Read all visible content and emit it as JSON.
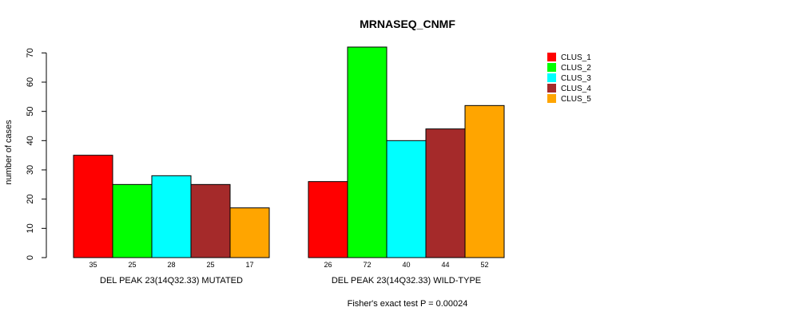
{
  "chart_data": {
    "type": "bar",
    "title": "MRNASEQ_CNMF",
    "ylabel": "number of cases",
    "xlabel": "",
    "ylim": [
      0,
      72
    ],
    "yticks": [
      0,
      10,
      20,
      30,
      40,
      50,
      60,
      70
    ],
    "groups": [
      "DEL PEAK 23(14Q32.33) MUTATED",
      "DEL PEAK 23(14Q32.33) WILD-TYPE"
    ],
    "series": [
      {
        "name": "CLUS_1",
        "color": "#ff0000",
        "values": [
          35,
          26
        ]
      },
      {
        "name": "CLUS_2",
        "color": "#00ff00",
        "values": [
          25,
          72
        ]
      },
      {
        "name": "CLUS_3",
        "color": "#00ffff",
        "values": [
          28,
          40
        ]
      },
      {
        "name": "CLUS_4",
        "color": "#a52a2a",
        "values": [
          25,
          44
        ]
      },
      {
        "name": "CLUS_5",
        "color": "#ffa500",
        "values": [
          17,
          52
        ]
      }
    ],
    "legend_position": "top-right",
    "grid": false,
    "footer": "Fisher's exact test P = 0.00024"
  }
}
